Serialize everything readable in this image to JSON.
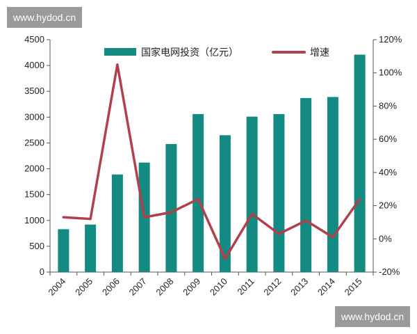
{
  "watermarks": [
    "www.hydod.cn",
    "www.hydod.cn"
  ],
  "chart_data": {
    "type": "bar+line",
    "categories": [
      "2004",
      "2005",
      "2006",
      "2007",
      "2008",
      "2009",
      "2010",
      "2011",
      "2012",
      "2013",
      "2014",
      "2015"
    ],
    "series": [
      {
        "name": "国家电网投资（亿元）",
        "type": "bar",
        "axis": "left",
        "color": "#138b82",
        "values": [
          830,
          920,
          1890,
          2120,
          2480,
          3060,
          2650,
          3010,
          3060,
          3370,
          3390,
          4210
        ]
      },
      {
        "name": "增速",
        "type": "line",
        "axis": "right",
        "color": "#b0404a",
        "values": [
          0.13,
          0.12,
          1.05,
          0.13,
          0.16,
          0.24,
          -0.12,
          0.15,
          0.03,
          0.11,
          0.01,
          0.24
        ]
      }
    ],
    "y_left": {
      "min": 0,
      "max": 4500,
      "ticks": [
        0,
        500,
        1000,
        1500,
        2000,
        2500,
        3000,
        3500,
        4000,
        4500
      ]
    },
    "y_right": {
      "min": -0.2,
      "max": 1.2,
      "ticks": [
        -0.2,
        0,
        0.2,
        0.4,
        0.6,
        0.8,
        1.0,
        1.2
      ],
      "tick_labels": [
        "-20%",
        "0%",
        "20%",
        "40%",
        "60%",
        "80%",
        "100%",
        "120%"
      ]
    },
    "legend": {
      "position": "top-center"
    },
    "grid": false
  }
}
